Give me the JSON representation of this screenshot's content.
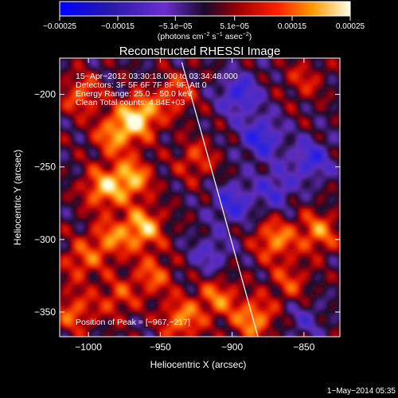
{
  "chart_data": {
    "type": "heatmap",
    "title": "Reconstructed RHESSI Image",
    "xlabel": "Heliocentric X (arcsec)",
    "ylabel": "Heliocentric Y (arcsec)",
    "xlim": [
      -1020,
      -825
    ],
    "ylim": [
      -367,
      -175
    ],
    "x_ticks": [
      -1000,
      -950,
      -900,
      -850
    ],
    "x_tick_labels": [
      "−1000",
      "−950",
      "−900",
      "−850"
    ],
    "y_ticks": [
      -200,
      -250,
      -300,
      -350
    ],
    "y_tick_labels": [
      "−200",
      "−250",
      "−300",
      "−350"
    ],
    "colorbar": {
      "range": [
        -0.00025,
        0.00025
      ],
      "tick_values": [
        -0.00025,
        -0.00015,
        -5.1e-05,
        5.1e-05,
        0.00015,
        0.00025
      ],
      "tick_labels": [
        "−0.00025",
        "−0.00015",
        "−5.1e−05",
        "5.1e−05",
        "0.00015",
        "0.00025"
      ],
      "label_parts": [
        "(photons cm",
        "−2",
        " s",
        "−1",
        " asec",
        "−2",
        ")"
      ]
    },
    "annotations": [
      "15−Apr−2012 03:30:18.000 to 03:34:48.000",
      "Detectors: 3F 5F 6F 7F 8F 9F, Att 0",
      "Energy Range: 25.0 − 50.0 keV",
      "Clean     Total counts: 4.84E+03"
    ],
    "peak_label": "Position of Peak = [−967,−217]",
    "peak": [
      -967,
      -217
    ],
    "limb_line": [
      [
        -935,
        -178
      ],
      [
        -882,
        -367
      ]
    ],
    "grid": false,
    "blobs": [
      {
        "x": -965,
        "y": -215,
        "v": 1.0
      },
      {
        "x": -982,
        "y": -228,
        "v": 0.7
      },
      {
        "x": -990,
        "y": -265,
        "v": 0.75
      },
      {
        "x": -970,
        "y": -258,
        "v": 0.8
      },
      {
        "x": -962,
        "y": -292,
        "v": 0.85
      },
      {
        "x": -985,
        "y": -300,
        "v": 0.6
      },
      {
        "x": -1005,
        "y": -315,
        "v": 0.5
      },
      {
        "x": -955,
        "y": -325,
        "v": 0.55
      },
      {
        "x": -935,
        "y": -355,
        "v": 0.7
      },
      {
        "x": -910,
        "y": -340,
        "v": 0.6
      },
      {
        "x": -885,
        "y": -355,
        "v": 0.75
      },
      {
        "x": -870,
        "y": -300,
        "v": 0.7
      },
      {
        "x": -840,
        "y": -295,
        "v": 0.65
      },
      {
        "x": -860,
        "y": -330,
        "v": 0.45
      },
      {
        "x": -925,
        "y": -245,
        "v": 0.45
      },
      {
        "x": -940,
        "y": -200,
        "v": 0.5
      },
      {
        "x": -1005,
        "y": -200,
        "v": 0.55
      },
      {
        "x": -850,
        "y": -190,
        "v": 0.35
      },
      {
        "x": -1010,
        "y": -350,
        "v": 0.55
      },
      {
        "x": -980,
        "y": -340,
        "v": 0.45
      },
      {
        "x": -900,
        "y": -275,
        "v": -0.6
      },
      {
        "x": -880,
        "y": -230,
        "v": -0.7
      },
      {
        "x": -845,
        "y": -245,
        "v": -0.6
      },
      {
        "x": -895,
        "y": -200,
        "v": -0.65
      },
      {
        "x": -870,
        "y": -265,
        "v": -0.5
      },
      {
        "x": -915,
        "y": -310,
        "v": -0.4
      },
      {
        "x": -850,
        "y": -355,
        "v": -0.3
      }
    ]
  },
  "footer": {
    "date": "1−May−2014 05:35"
  }
}
